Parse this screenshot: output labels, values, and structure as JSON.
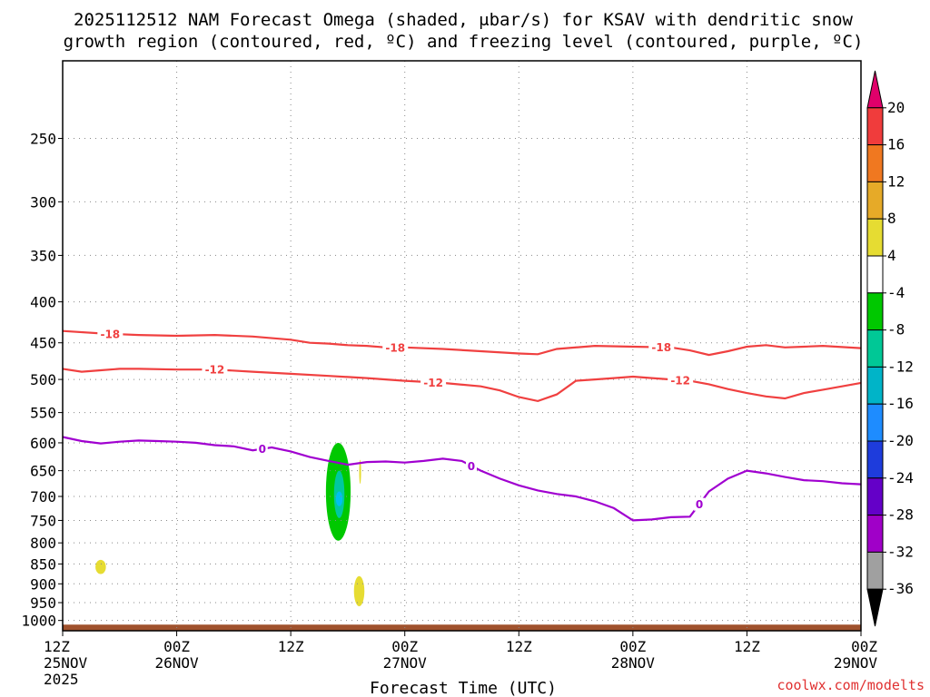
{
  "chart_data": {
    "type": "time-height cross section",
    "title_line1": "2025112512 NAM Forecast Omega (shaded, μbar/s) for KSAV with dendritic snow",
    "title_line2": "growth region (contoured, red, ºC) and freezing level (contoured, purple, ºC)",
    "xlabel": "Forecast Time (UTC)",
    "credit": "coolwx.com/modelts",
    "x_hours_range": [
      0,
      84
    ],
    "y_pressure_range_hPa": [
      200,
      1030
    ],
    "pressure_ticks": [
      250,
      300,
      350,
      400,
      450,
      500,
      550,
      600,
      650,
      700,
      750,
      800,
      850,
      900,
      950,
      1000
    ],
    "time_ticks": [
      {
        "hour": 0,
        "line1": "12Z",
        "line2": "25NOV",
        "line3": "2025"
      },
      {
        "hour": 12,
        "line1": "00Z",
        "line2": "26NOV",
        "line3": ""
      },
      {
        "hour": 24,
        "line1": "12Z",
        "line2": "",
        "line3": ""
      },
      {
        "hour": 36,
        "line1": "00Z",
        "line2": "27NOV",
        "line3": ""
      },
      {
        "hour": 48,
        "line1": "12Z",
        "line2": "",
        "line3": ""
      },
      {
        "hour": 60,
        "line1": "00Z",
        "line2": "28NOV",
        "line3": ""
      },
      {
        "hour": 72,
        "line1": "12Z",
        "line2": "",
        "line3": ""
      },
      {
        "hour": 84,
        "line1": "00Z",
        "line2": "29NOV",
        "line3": ""
      }
    ],
    "contours": [
      {
        "name": "minus-18C",
        "label": "-18",
        "color": "#f04040",
        "x": [
          0,
          4,
          8,
          12,
          16,
          20,
          24,
          26,
          28,
          30,
          32,
          34,
          36,
          40,
          44,
          48,
          50,
          52,
          56,
          60,
          64,
          66,
          68,
          70,
          72,
          74,
          76,
          78,
          80,
          84
        ],
        "p": [
          435,
          438,
          440,
          441,
          440,
          442,
          446,
          450,
          451,
          453,
          454,
          456,
          456,
          458,
          461,
          464,
          465,
          458,
          454,
          455,
          456,
          460,
          466,
          461,
          455,
          453,
          456,
          455,
          454,
          457
        ],
        "label_hours": [
          5,
          35,
          63
        ]
      },
      {
        "name": "minus-12C",
        "label": "-12",
        "color": "#f04040",
        "x": [
          0,
          2,
          4,
          6,
          8,
          12,
          16,
          20,
          24,
          28,
          32,
          36,
          40,
          44,
          46,
          48,
          50,
          52,
          54,
          56,
          58,
          60,
          62,
          64,
          66,
          68,
          70,
          72,
          74,
          76,
          78,
          80,
          82,
          84
        ],
        "p": [
          485,
          489,
          487,
          485,
          485,
          486,
          486,
          489,
          492,
          495,
          498,
          502,
          505,
          510,
          516,
          526,
          532,
          522,
          502,
          500,
          498,
          496,
          498,
          500,
          502,
          507,
          514,
          520,
          525,
          528,
          520,
          515,
          510,
          505
        ],
        "label_hours": [
          16,
          39,
          65
        ]
      },
      {
        "name": "freezing-level-0C",
        "label": "0",
        "color": "#a000d0",
        "x": [
          0,
          2,
          4,
          6,
          8,
          10,
          12,
          14,
          16,
          18,
          20,
          22,
          24,
          26,
          28,
          30,
          32,
          34,
          36,
          38,
          40,
          42,
          44,
          46,
          48,
          50,
          52,
          54,
          56,
          58,
          60,
          62,
          64,
          66,
          68,
          70,
          72,
          74,
          76,
          78,
          80,
          82,
          84
        ],
        "p": [
          590,
          597,
          601,
          598,
          596,
          597,
          598,
          600,
          604,
          606,
          613,
          608,
          615,
          625,
          632,
          639,
          634,
          633,
          635,
          632,
          628,
          632,
          650,
          665,
          678,
          688,
          695,
          700,
          710,
          724,
          750,
          748,
          743,
          742,
          690,
          665,
          650,
          655,
          662,
          668,
          670,
          674,
          676
        ],
        "label_hours": [
          21,
          43,
          67
        ]
      }
    ],
    "omega_shading": [
      {
        "name": "green-core",
        "color": "#00c800",
        "x_center": 29.0,
        "half_width": 1.3,
        "p_top": 600,
        "p_bottom": 795
      },
      {
        "name": "teal-inner",
        "color": "#00c8a0",
        "x_center": 29.1,
        "half_width": 0.55,
        "p_top": 650,
        "p_bottom": 745
      },
      {
        "name": "cyan-inner",
        "color": "#00c0f0",
        "x_center": 29.1,
        "half_width": 0.35,
        "p_top": 690,
        "p_bottom": 720
      },
      {
        "name": "yellow-near-900",
        "color": "#e6dc32",
        "x_center": 31.2,
        "half_width": 0.55,
        "p_top": 880,
        "p_bottom": 960
      },
      {
        "name": "yellow-near-850",
        "color": "#e6dc32",
        "x_center": 4.0,
        "half_width": 0.55,
        "p_top": 840,
        "p_bottom": 875
      },
      {
        "name": "yellow-sliver",
        "color": "#e6dc32",
        "x_center": 31.3,
        "half_width": 0.1,
        "p_top": 630,
        "p_bottom": 675
      }
    ],
    "ground": {
      "color": "#a0522d",
      "pressure_top_hPa": 1012
    },
    "colorbar": {
      "labels": [
        "20",
        "16",
        "12",
        "8",
        "4",
        "-4",
        "-8",
        "-12",
        "-16",
        "-20",
        "-24",
        "-28",
        "-32",
        "-36"
      ],
      "segments": [
        "#e0006a",
        "#f03c3c",
        "#f07820",
        "#e6aa28",
        "#e6dc32",
        "#ffffff",
        "#00c800",
        "#00c896",
        "#00b4c8",
        "#1e8cff",
        "#1e3cdc",
        "#6400c8",
        "#a000c8",
        "#a0a0a0",
        "#000000"
      ]
    }
  }
}
